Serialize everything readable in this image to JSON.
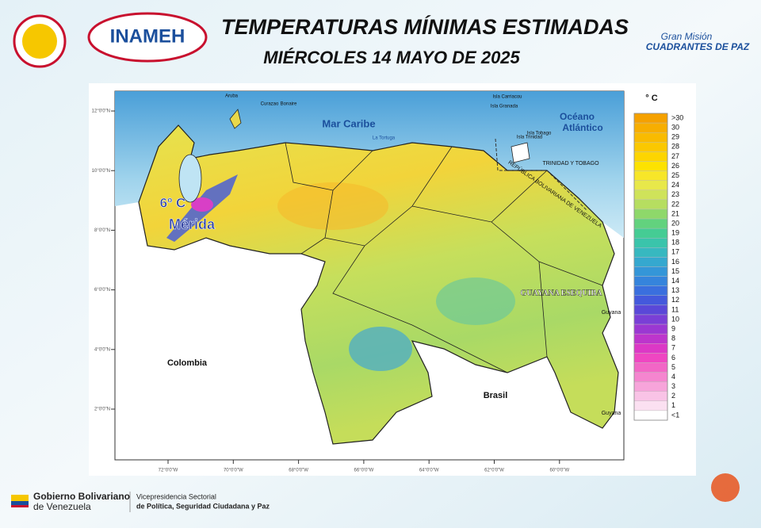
{
  "header": {
    "title": "TEMPERATURAS MÍNIMAS ESTIMADAS",
    "date": "MIÉRCOLES 14  MAYO DE 2025",
    "logo_left": "INAMEH",
    "logo_right_top": "Gran Misión",
    "logo_right_bottom": "CUADRANTES DE PAZ"
  },
  "map": {
    "labels": {
      "sea": "Mar Caribe",
      "ocean_1": "Océano",
      "ocean_2": "Atlántico",
      "colombia": "Colombia",
      "brasil": "Brasil",
      "esequibo": "GUAYANA ESEQUIBA",
      "guyana": "Guyana",
      "guyana_south": "Guyana",
      "trinidad_tobago": "TRINIDAD Y TOBAGO",
      "venezuela": "REPÚBLICA BOLIVARIANA DE VENEZUELA",
      "aruba": "Aruba",
      "curazao": "Curazao",
      "bonaire": "Bonaire",
      "tortuga": "La Tortuga",
      "trinidad": "Isla Trinidad",
      "tobago": "Isla Tobago",
      "granada": "Isla Granada",
      "carriacou": "Isla Carriacou"
    },
    "annotation": {
      "value": "6º C",
      "place": "Mérida"
    },
    "lat_ticks": [
      "12°0'0\"N",
      "10°0'0\"N",
      "8°0'0\"N",
      "6°0'0\"N",
      "4°0'0\"N",
      "2°0'0\"N"
    ],
    "lon_ticks": [
      "72°0'0\"W",
      "70°0'0\"W",
      "68°0'0\"W",
      "66°0'0\"W",
      "64°0'0\"W",
      "62°0'0\"W",
      "60°0'0\"W"
    ]
  },
  "legend": {
    "unit": "° C",
    "items": [
      {
        "label": ">30",
        "color": "#f5a100"
      },
      {
        "label": "30",
        "color": "#f7ae00"
      },
      {
        "label": "29",
        "color": "#f9bb00"
      },
      {
        "label": "28",
        "color": "#fbc800"
      },
      {
        "label": "27",
        "color": "#fdd500"
      },
      {
        "label": "26",
        "color": "#fde200"
      },
      {
        "label": "25",
        "color": "#f7e629"
      },
      {
        "label": "24",
        "color": "#e8e84a"
      },
      {
        "label": "23",
        "color": "#cfe35a"
      },
      {
        "label": "22",
        "color": "#b6de60"
      },
      {
        "label": "21",
        "color": "#8ed86a"
      },
      {
        "label": "20",
        "color": "#62d27e"
      },
      {
        "label": "19",
        "color": "#45cc94"
      },
      {
        "label": "18",
        "color": "#3ac4ab"
      },
      {
        "label": "17",
        "color": "#37b8c0"
      },
      {
        "label": "16",
        "color": "#35a8cf"
      },
      {
        "label": "15",
        "color": "#3496d8"
      },
      {
        "label": "14",
        "color": "#3584dc"
      },
      {
        "label": "13",
        "color": "#3a6fde"
      },
      {
        "label": "12",
        "color": "#4459dc"
      },
      {
        "label": "11",
        "color": "#5a48d8"
      },
      {
        "label": "10",
        "color": "#7a3fd6"
      },
      {
        "label": "9",
        "color": "#9b38d2"
      },
      {
        "label": "8",
        "color": "#bd35cc"
      },
      {
        "label": "7",
        "color": "#dc38c6"
      },
      {
        "label": "6",
        "color": "#ef46c2"
      },
      {
        "label": "5",
        "color": "#f266c6"
      },
      {
        "label": "4",
        "color": "#f585cf"
      },
      {
        "label": "3",
        "color": "#f7a4da"
      },
      {
        "label": "2",
        "color": "#f9c3e6"
      },
      {
        "label": "1",
        "color": "#fbe0f1"
      },
      {
        "label": "<1",
        "color": "#ffffff"
      }
    ]
  },
  "footer": {
    "gov_1": "Gobierno Bolivariano",
    "gov_2": "de Venezuela",
    "vice_1": "Vicepresidencia Sectorial",
    "vice_2": "de Política, Seguridad Ciudadana y Paz"
  }
}
